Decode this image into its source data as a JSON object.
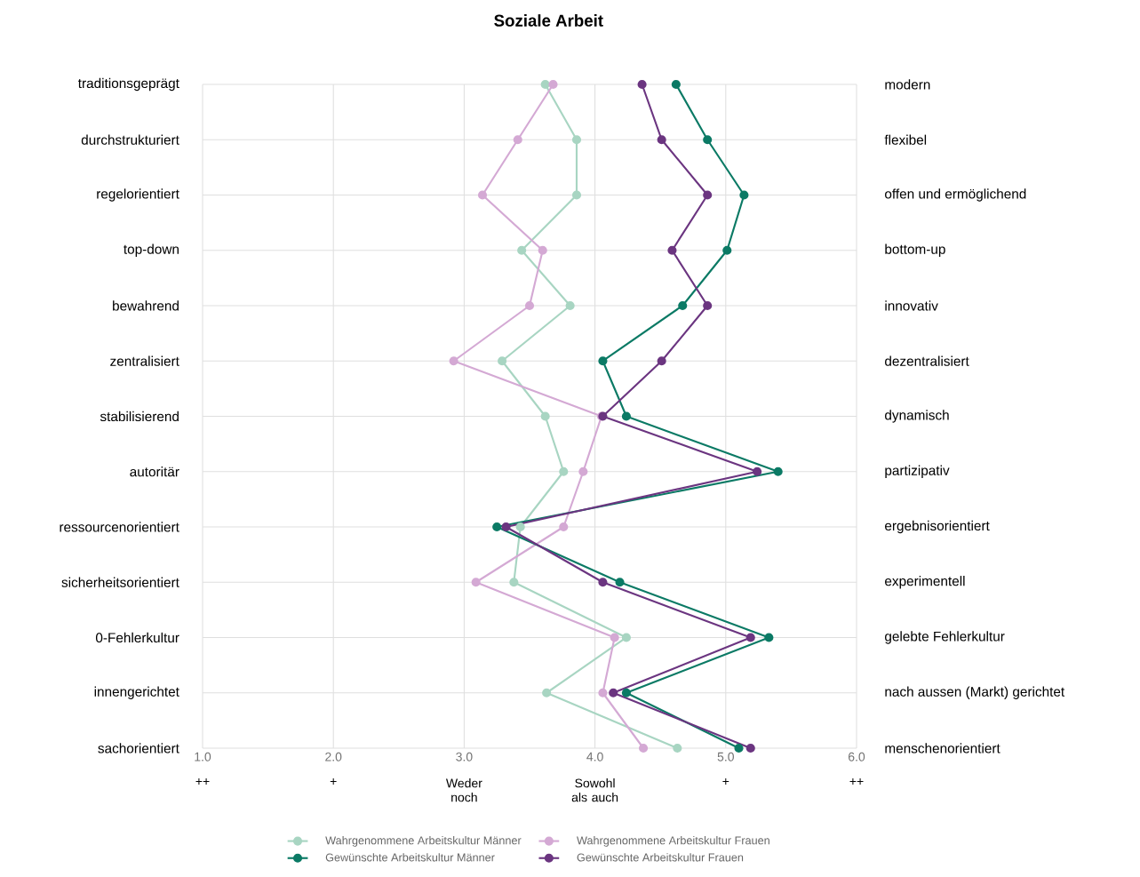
{
  "chart_data": {
    "type": "line",
    "orientation": "horizontal",
    "title": "Soziale Arbeit",
    "categories": [
      "traditionsgeprägt",
      "durchstrukturiert",
      "regelorientiert",
      "top-down",
      "bewahrend",
      "zentralisiert",
      "stabilisierend",
      "autoritär",
      "ressourcenorientiert",
      "sicherheitsorientiert",
      "0-Fehlerkultur",
      "innengerichtet",
      "sachorientiert"
    ],
    "y2_categories": [
      "modern",
      "flexibel",
      "offen und ermöglichend",
      "bottom-up",
      "innovativ",
      "dezentralisiert",
      "dynamisch",
      "partizipativ",
      "ergebnisorientiert",
      "experimentell",
      "gelebte Fehlerkultur",
      "nach aussen (Markt) gerichtet",
      "menschenorientiert"
    ],
    "series": [
      {
        "name": "Wahrgenommene Arbeitskultur Männer",
        "color": "#a8d5c2",
        "values": [
          3.62,
          3.86,
          3.86,
          3.44,
          3.81,
          3.29,
          3.62,
          3.76,
          3.43,
          3.38,
          4.24,
          3.63,
          4.63
        ]
      },
      {
        "name": "Wahrgenommene Arbeitskultur Frauen",
        "color": "#d4a9d4",
        "values": [
          3.68,
          3.41,
          3.14,
          3.6,
          3.5,
          2.92,
          4.05,
          3.91,
          3.76,
          3.09,
          4.15,
          4.06,
          4.37
        ]
      },
      {
        "name": "Gewünschte Arbeitskultur Männer",
        "color": "#0b7a65",
        "values": [
          4.62,
          4.86,
          5.14,
          5.01,
          4.67,
          4.06,
          4.24,
          5.4,
          3.25,
          4.19,
          5.33,
          4.24,
          5.1
        ]
      },
      {
        "name": "Gewünschte Arbeitskultur Frauen",
        "color": "#6b3580",
        "values": [
          4.36,
          4.51,
          4.86,
          4.59,
          4.86,
          4.51,
          4.06,
          5.24,
          3.32,
          4.06,
          5.19,
          4.14,
          5.19
        ]
      }
    ],
    "xlim": [
      1,
      6
    ],
    "xticks": [
      {
        "value": 1,
        "label": "1.0"
      },
      {
        "value": 2,
        "label": "2.0"
      },
      {
        "value": 3,
        "label": "3.0"
      },
      {
        "value": 4,
        "label": "4.0"
      },
      {
        "value": 5,
        "label": "5.0"
      },
      {
        "value": 6,
        "label": "6.0"
      }
    ],
    "annotations": [
      "++",
      "+",
      "Weder noch",
      "Sowohl als auch",
      "+",
      "++"
    ],
    "grid": true,
    "legend": "bottom",
    "marker": "circle",
    "line_style": "solid"
  }
}
